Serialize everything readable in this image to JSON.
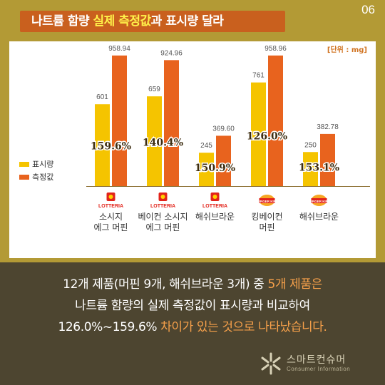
{
  "page_number": "06",
  "title": {
    "part1": "나트륨 함량 ",
    "part2": "실제 측정값",
    "part3": "과 표시량 달라"
  },
  "unit_label": "[단위 : mg]",
  "colors": {
    "declared": "#f5c400",
    "measured": "#e8631e",
    "ratio_text": "#3d2d10",
    "background": "#b39a35"
  },
  "chart_data": {
    "type": "bar",
    "series": [
      {
        "name": "표시량",
        "values": [
          601,
          659,
          245,
          761,
          250
        ]
      },
      {
        "name": "측정값",
        "values": [
          958.94,
          924.96,
          369.6,
          958.96,
          382.78
        ]
      }
    ],
    "value_labels": {
      "declared": [
        "601",
        "659",
        "245",
        "761",
        "250"
      ],
      "measured": [
        "958.94",
        "924.96",
        "369.60",
        "958.96",
        "382.78"
      ]
    },
    "ratio_labels": [
      "159.6%",
      "140.4%",
      "150.9%",
      "126.0%",
      "153.1%"
    ],
    "categories": [
      {
        "brand": "LOTTERIA",
        "brand_icon": "lotteria-logo",
        "lines": [
          "소시지",
          "에그 머핀"
        ]
      },
      {
        "brand": "LOTTERIA",
        "brand_icon": "lotteria-logo",
        "lines": [
          "베이컨 소시지",
          "에그 머핀"
        ]
      },
      {
        "brand": "LOTTERIA",
        "brand_icon": "lotteria-logo",
        "lines": [
          "해쉬브라운"
        ]
      },
      {
        "brand": "BURGER KING",
        "brand_icon": "burger-king-logo",
        "lines": [
          "킹베이컨",
          "머핀"
        ]
      },
      {
        "brand": "BURGER KING",
        "brand_icon": "burger-king-logo",
        "lines": [
          "해쉬브라운"
        ]
      }
    ],
    "ylim": [
      0,
      1000
    ],
    "grid": false,
    "legend_position": "left"
  },
  "legend": [
    {
      "label": "표시량",
      "color": "#f5c400"
    },
    {
      "label": "측정값",
      "color": "#e8631e"
    }
  ],
  "summary": {
    "line1a": "12개 제품(머핀 9개, 해쉬브라운 3개) 중 ",
    "line1b": "5개 제품은",
    "line2": "나트륨 함량의 실제 측정값이 표시량과 비교하여",
    "line3a": "126.0%~159.6% ",
    "line3b": "차이가 있는 것으로 나타났습니다."
  },
  "brand": {
    "name": "스마트컨슈머",
    "sub": "Consumer Information"
  }
}
